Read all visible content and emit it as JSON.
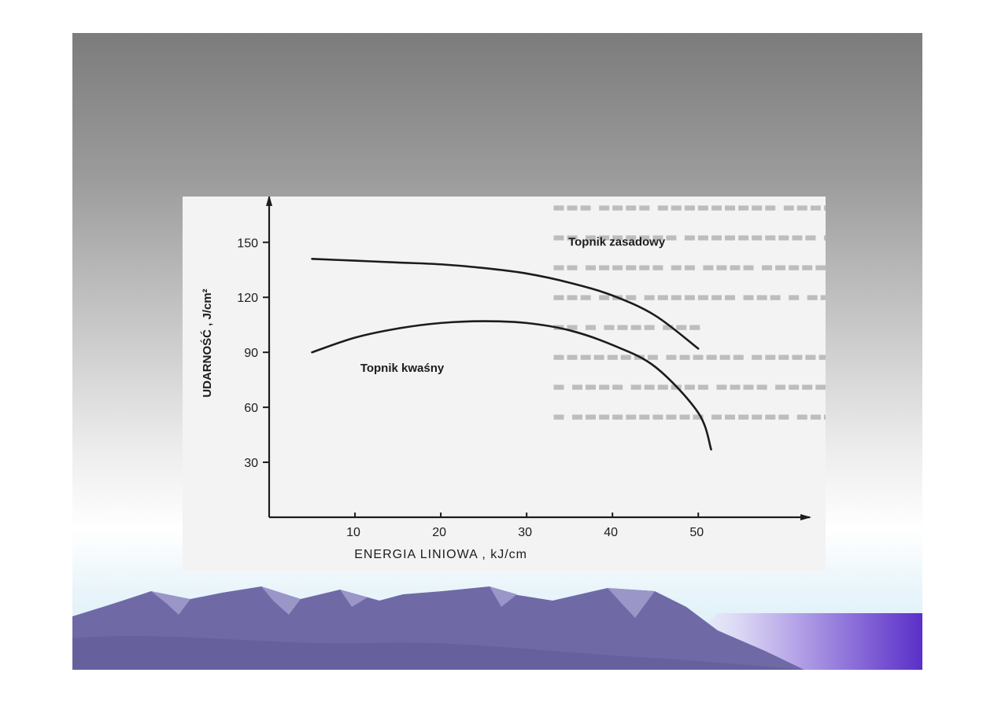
{
  "chart_data": {
    "type": "line",
    "title": "",
    "xlabel": "ENERGIA LINIOWA , kJ/cm",
    "ylabel": "UDARNOŚĆ , J/cm²",
    "xlim": [
      0,
      63
    ],
    "ylim": [
      0,
      175
    ],
    "xticks": [
      10,
      20,
      30,
      40,
      50
    ],
    "yticks": [
      30,
      60,
      90,
      120,
      150
    ],
    "grid": false,
    "series": [
      {
        "name": "Topnik zasadowy",
        "x": [
          5,
          10,
          15,
          20,
          25,
          30,
          35,
          40,
          45,
          50
        ],
        "values": [
          141,
          140,
          139,
          138,
          136,
          133,
          128,
          121,
          110,
          92
        ]
      },
      {
        "name": "Topnik kwaśny",
        "x": [
          5,
          10,
          15,
          20,
          25,
          30,
          35,
          40,
          45,
          50,
          51.5
        ],
        "values": [
          90,
          98,
          103,
          106,
          107,
          106,
          102,
          94,
          82,
          57,
          37
        ]
      }
    ]
  },
  "colors": {
    "ink": "#1c1c1c",
    "scan_paper": "#f3f3f3",
    "ghost_text": "#bdbdbd",
    "mountain": "#6f6aa6",
    "mountain_light": "#9a96c8",
    "accent_purple": "#5a2fc8"
  }
}
